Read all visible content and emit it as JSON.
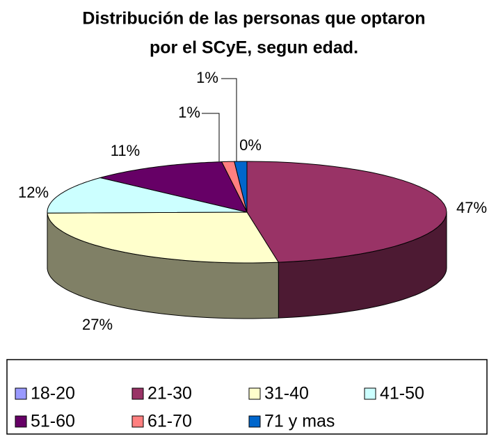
{
  "chart_data": {
    "type": "pie",
    "title": [
      "Distribución de las personas que optaron",
      "por el SCyE, segun edad."
    ],
    "categories": [
      "18-20",
      "21-30",
      "31-40",
      "41-50",
      "51-60",
      "61-70",
      "71 y mas"
    ],
    "values": [
      0,
      47,
      27,
      12,
      11,
      1,
      1
    ],
    "value_labels": [
      "0%",
      "47%",
      "27%",
      "12%",
      "11%",
      "1%",
      "1%"
    ],
    "colors": [
      "#9999ff",
      "#993366",
      "#ffffcc",
      "#ccffff",
      "#660066",
      "#ff8080",
      "#0066cc"
    ],
    "legend": "bottom"
  }
}
